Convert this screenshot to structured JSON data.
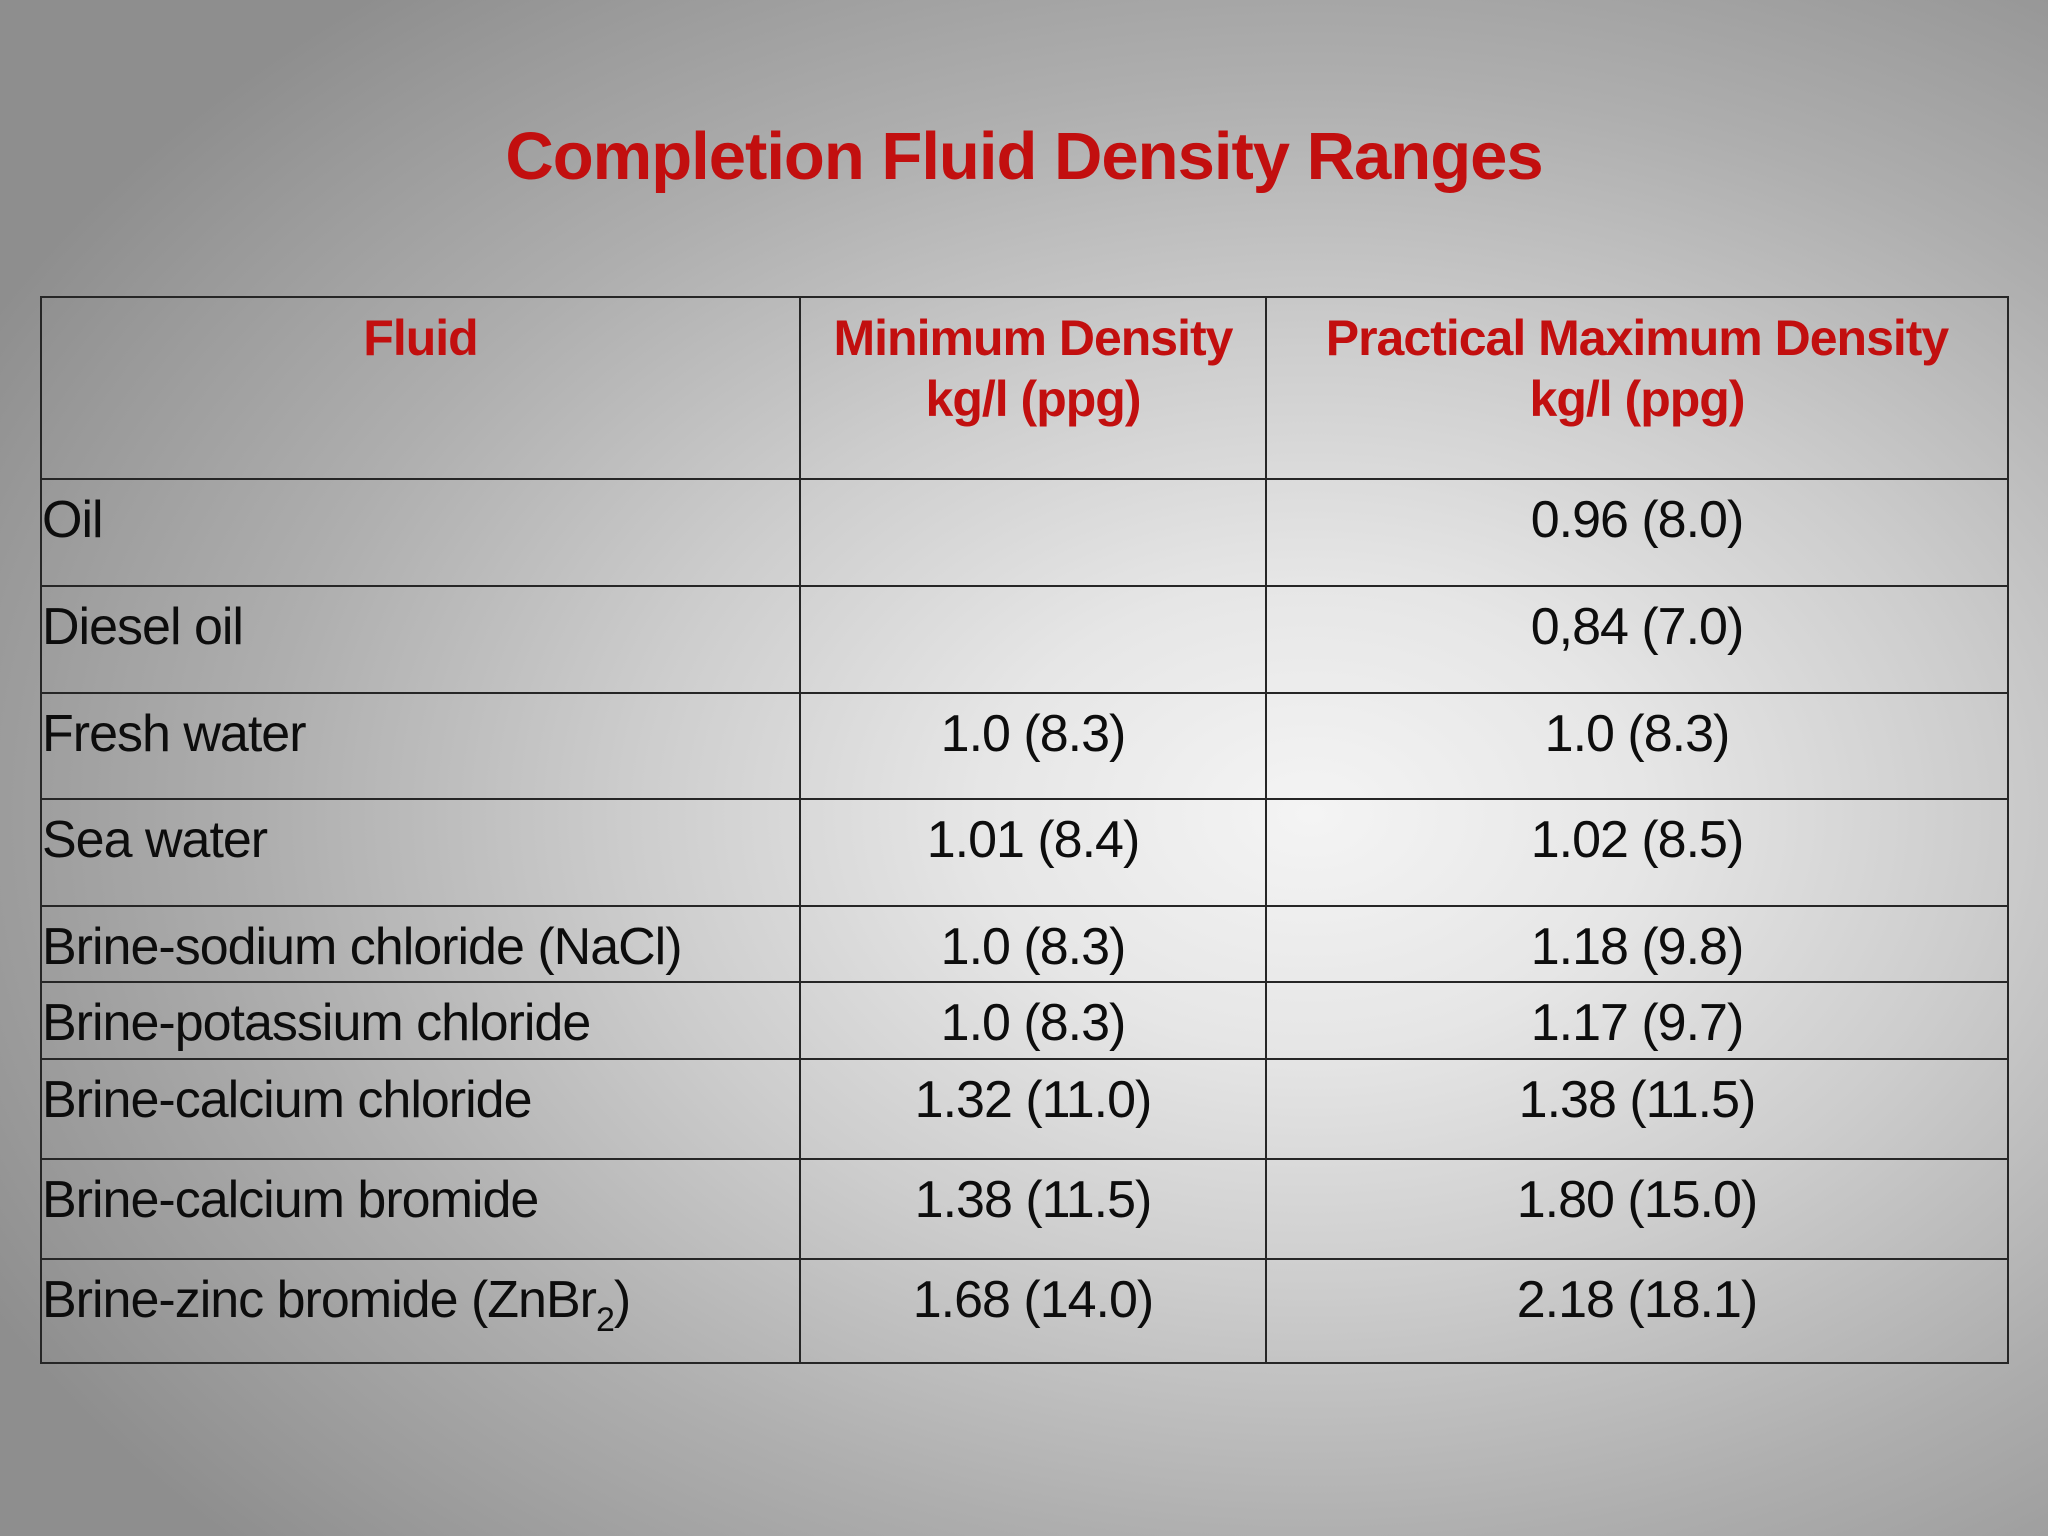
{
  "title": "Completion Fluid Density Ranges",
  "colors": {
    "accent_red": "#c20f0f",
    "body_text": "#0d0d0d",
    "table_border": "#262626"
  },
  "table": {
    "headers": [
      {
        "line1": "Fluid",
        "line2": ""
      },
      {
        "line1": "Minimum Density",
        "line2": "kg/l (ppg)"
      },
      {
        "line1": "Practical Maximum Density",
        "line2": "kg/l (ppg)"
      }
    ],
    "rows": [
      {
        "fluid": "Oil",
        "fluid_sub": "",
        "fluid_suffix": "",
        "min": "",
        "max": "0.96 (8.0)"
      },
      {
        "fluid": "Diesel oil",
        "fluid_sub": "",
        "fluid_suffix": "",
        "min": "",
        "max": "0,84 (7.0)"
      },
      {
        "fluid": "Fresh water",
        "fluid_sub": "",
        "fluid_suffix": "",
        "min": "1.0 (8.3)",
        "max": "1.0 (8.3)"
      },
      {
        "fluid": "Sea water",
        "fluid_sub": "",
        "fluid_suffix": "",
        "min": "1.01 (8.4)",
        "max": "1.02 (8.5)"
      },
      {
        "fluid": "Brine-sodium chloride (NaCl)",
        "fluid_sub": "",
        "fluid_suffix": "",
        "min": "1.0 (8.3)",
        "max": "1.18 (9.8)"
      },
      {
        "fluid": "Brine-potassium chloride",
        "fluid_sub": "",
        "fluid_suffix": "",
        "min": "1.0 (8.3)",
        "max": "1.17 (9.7)"
      },
      {
        "fluid": "Brine-calcium chloride",
        "fluid_sub": "",
        "fluid_suffix": "",
        "min": "1.32 (11.0)",
        "max": "1.38 (11.5)"
      },
      {
        "fluid": "Brine-calcium bromide",
        "fluid_sub": "",
        "fluid_suffix": "",
        "min": "1.38 (11.5)",
        "max": "1.80 (15.0)"
      },
      {
        "fluid": "Brine-zinc bromide (ZnBr",
        "fluid_sub": "2",
        "fluid_suffix": ")",
        "min": "1.68 (14.0)",
        "max": "2.18 (18.1)"
      }
    ]
  }
}
